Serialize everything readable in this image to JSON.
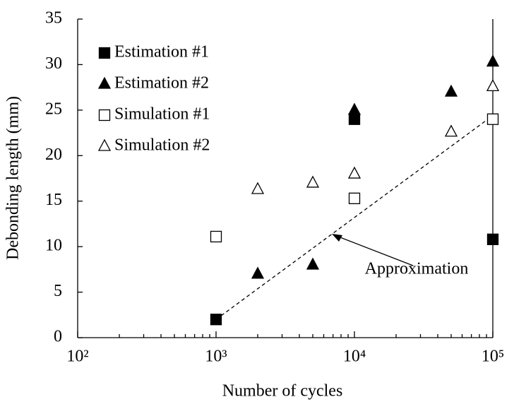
{
  "chart_data": {
    "type": "scatter",
    "xlabel": "Number of cycles",
    "ylabel": "Debonding length (mm)",
    "xscale": "log",
    "xlim": [
      100,
      100000
    ],
    "ylim": [
      0,
      35
    ],
    "xticks": [
      {
        "value": 100,
        "label": "10²"
      },
      {
        "value": 1000,
        "label": "10³"
      },
      {
        "value": 10000,
        "label": "10⁴"
      },
      {
        "value": 100000,
        "label": "10⁵"
      }
    ],
    "xminorticks": [
      200,
      300,
      400,
      500,
      600,
      700,
      800,
      900,
      2000,
      3000,
      4000,
      5000,
      6000,
      7000,
      8000,
      9000,
      20000,
      30000,
      40000,
      50000,
      60000,
      70000,
      80000,
      90000
    ],
    "yticks": [
      0,
      5,
      10,
      15,
      20,
      25,
      30,
      35
    ],
    "legend": "upper left",
    "series": [
      {
        "name": "Estimation #1",
        "marker": "square",
        "filled": true,
        "color": "#000000",
        "x": [
          1000,
          10000,
          100000
        ],
        "values": [
          2,
          24,
          10.8
        ]
      },
      {
        "name": "Estimation #2",
        "marker": "triangle",
        "filled": true,
        "color": "#000000",
        "x": [
          2000,
          5000,
          10000,
          50000,
          100000
        ],
        "values": [
          7,
          8,
          25,
          27,
          30.3
        ]
      },
      {
        "name": "Simulation #1",
        "marker": "square",
        "filled": false,
        "color": "#000000",
        "x": [
          1000,
          10000,
          100000
        ],
        "values": [
          11.1,
          15.3,
          24
        ]
      },
      {
        "name": "Simulation #2",
        "marker": "triangle",
        "filled": false,
        "color": "#000000",
        "x": [
          2000,
          5000,
          10000,
          50000,
          100000
        ],
        "values": [
          16.3,
          17,
          18,
          22.6,
          27.6
        ]
      }
    ],
    "approximation": {
      "label": "Approximation",
      "x": [
        1000,
        100000
      ],
      "values": [
        2,
        24.4
      ]
    }
  }
}
